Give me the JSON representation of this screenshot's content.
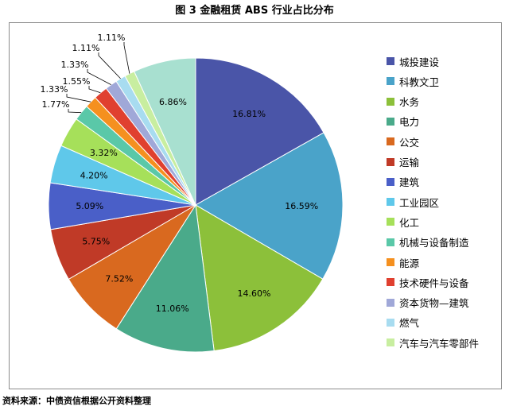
{
  "title": "图 3   金融租赁 ABS 行业占比分布",
  "source": "资料来源：中债资信根据公开资料整理",
  "chart_data": {
    "type": "pie",
    "title": "金融租赁 ABS 行业占比分布",
    "legend_position": "right",
    "slices": [
      {
        "label": "城投建设",
        "value": 16.81,
        "display": "16.81%",
        "color": "#4a55a8"
      },
      {
        "label": "科教文卫",
        "value": 16.59,
        "display": "16.59%",
        "color": "#4aa3c9"
      },
      {
        "label": "水务",
        "value": 14.6,
        "display": "14.60%",
        "color": "#8cc03a"
      },
      {
        "label": "电力",
        "value": 11.06,
        "display": "11.06%",
        "color": "#4aaa8a"
      },
      {
        "label": "公交",
        "value": 7.52,
        "display": "7.52%",
        "color": "#d9691f"
      },
      {
        "label": "运输",
        "value": 5.75,
        "display": "5.75%",
        "color": "#c03a27"
      },
      {
        "label": "建筑",
        "value": 5.09,
        "display": "5.09%",
        "color": "#4a5fc8"
      },
      {
        "label": "工业园区",
        "value": 4.2,
        "display": "4.20%",
        "color": "#5fc8ea"
      },
      {
        "label": "化工",
        "value": 3.32,
        "display": "3.32%",
        "color": "#a6e05a"
      },
      {
        "label": "机械与设备制造",
        "value": 1.77,
        "display": "1.77%",
        "color": "#5ac8a8"
      },
      {
        "label": "能源",
        "value": 1.33,
        "display": "1.33%",
        "color": "#f5901f"
      },
      {
        "label": "技术硬件与设备",
        "value": 1.55,
        "display": "1.55%",
        "color": "#e0402f"
      },
      {
        "label": "资本货物—建筑",
        "value": 1.33,
        "display": "1.33%",
        "color": "#a0a8d8"
      },
      {
        "label": "燃气",
        "value": 1.11,
        "display": "1.11%",
        "color": "#a8dcf0"
      },
      {
        "label": "汽车与汽车零部件",
        "value": 1.11,
        "display": "1.11%",
        "color": "#c8eea0"
      },
      {
        "label": "",
        "value": 6.86,
        "display": "6.86%",
        "color": "#a8e0d0"
      }
    ]
  }
}
